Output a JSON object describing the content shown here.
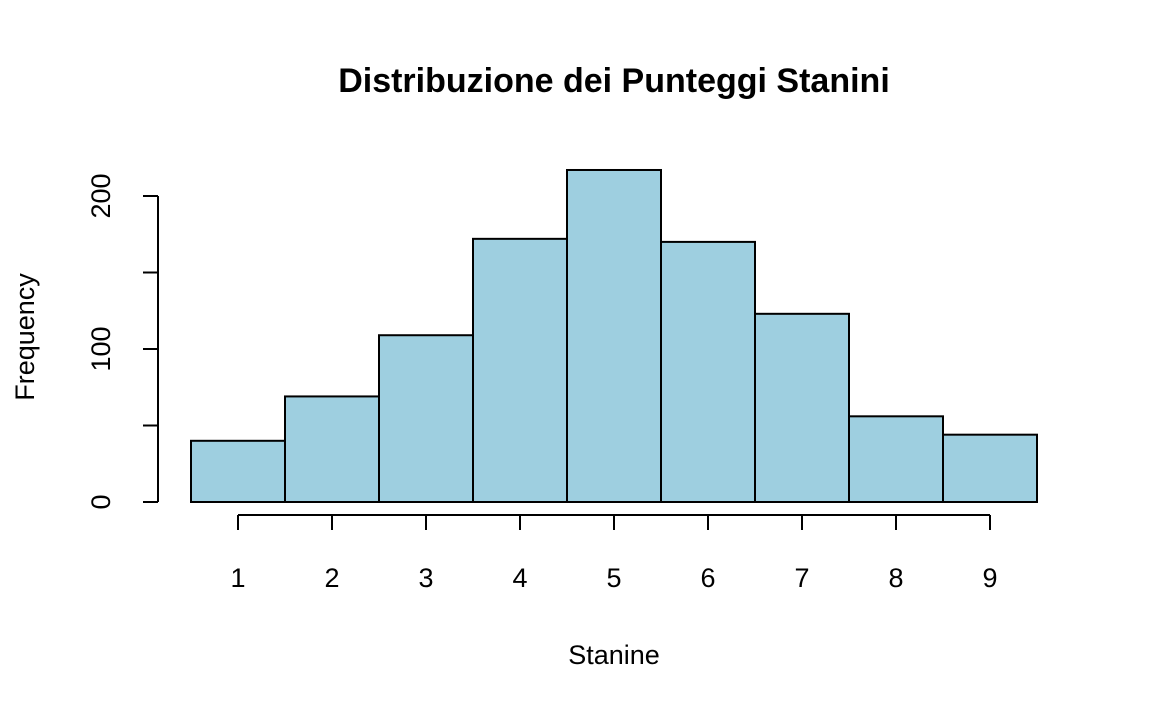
{
  "chart_data": {
    "type": "bar",
    "title": "Distribuzione dei Punteggi Stanini",
    "xlabel": "Stanine",
    "ylabel": "Frequency",
    "categories": [
      "1",
      "2",
      "3",
      "4",
      "5",
      "6",
      "7",
      "8",
      "9"
    ],
    "values": [
      40,
      69,
      109,
      172,
      217,
      170,
      123,
      56,
      44
    ],
    "yticks": [
      "0",
      "50",
      "100",
      "150",
      "200"
    ],
    "ylim": [
      0,
      217
    ],
    "bar_color": "#9ECFE0",
    "grid": false
  }
}
